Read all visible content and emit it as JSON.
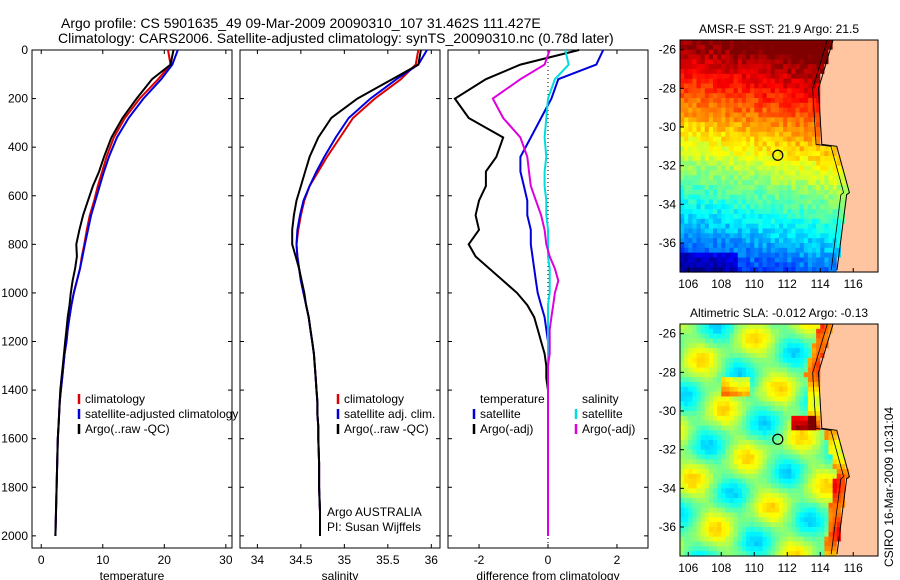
{
  "figure": {
    "title_line1": "Argo profile: CS 5901635_49 09-Mar-2009 20090310_107 31.462S 111.427E",
    "title_line2": "Climatology: CARS2006. Satellite-adjusted climatology: synTS_20090310.nc (0.78d later)",
    "side_label": "CSIRO 16-Mar-2009 10:31:04",
    "salinity_note_line1": "Argo AUSTRALIA",
    "salinity_note_line2": "PI: Susan Wijffels"
  },
  "colors": {
    "climatology": "#dd0000",
    "satellite": "#0000dd",
    "argo": "#000000",
    "salinity_satellite": "#00dddd",
    "salinity_argo": "#dd00dd",
    "land": "#ffc4a0"
  },
  "chart_data": [
    {
      "type": "line",
      "xlabel": "temperature",
      "xlim": [
        -1.5,
        31
      ],
      "xticks": [
        0,
        10,
        20,
        30
      ],
      "ylim": [
        2050,
        0
      ],
      "yticks": [
        0,
        200,
        400,
        600,
        800,
        1000,
        1200,
        1400,
        1600,
        1800,
        2000
      ],
      "legend": [
        "climatology",
        "satellite-adjusted climatology",
        "Argo(..raw -QC)"
      ],
      "legend_position": "lower-right",
      "series": [
        {
          "name": "climatology",
          "color": "#dd0000",
          "x": [
            20.6,
            21.0,
            19.0,
            16.0,
            13.6,
            11.8,
            10.6,
            9.9,
            9.2,
            8.6,
            7.9,
            7.4,
            7.0,
            6.6,
            6.3,
            5.8,
            5.3,
            4.9,
            4.6,
            4.3,
            4.1,
            3.8,
            3.6,
            3.4,
            3.2,
            3.0,
            2.9,
            2.8,
            2.7,
            2.6,
            2.5,
            2.4,
            2.3
          ],
          "y": [
            0,
            60,
            120,
            200,
            280,
            360,
            440,
            500,
            560,
            620,
            680,
            740,
            800,
            850,
            900,
            950,
            1000,
            1050,
            1100,
            1150,
            1200,
            1250,
            1300,
            1350,
            1400,
            1450,
            1500,
            1550,
            1600,
            1700,
            1800,
            1900,
            2000
          ]
        },
        {
          "name": "satellite-adjusted climatology",
          "color": "#0000dd",
          "x": [
            22.2,
            21.3,
            19.5,
            16.6,
            14.2,
            12.3,
            11.0,
            10.2,
            9.5,
            8.8,
            8.1,
            7.6,
            7.1,
            6.7,
            6.3,
            5.8,
            5.3,
            4.9,
            4.6,
            4.3,
            4.1,
            3.8,
            3.6,
            3.4,
            3.2,
            3.0,
            2.9,
            2.8,
            2.7,
            2.6,
            2.5,
            2.4,
            2.3
          ],
          "y": [
            0,
            60,
            120,
            200,
            280,
            360,
            440,
            500,
            560,
            620,
            680,
            740,
            800,
            850,
            900,
            950,
            1000,
            1050,
            1100,
            1150,
            1200,
            1250,
            1300,
            1350,
            1400,
            1450,
            1500,
            1550,
            1600,
            1700,
            1800,
            1900,
            2000
          ]
        },
        {
          "name": "Argo(..raw -QC)",
          "color": "#000000",
          "x": [
            21.5,
            21.0,
            18.0,
            15.5,
            13.2,
            11.4,
            10.2,
            9.4,
            8.4,
            7.6,
            6.8,
            6.2,
            5.7,
            5.8,
            5.5,
            5.1,
            4.8,
            4.6,
            4.3,
            4.1,
            3.9,
            3.7,
            3.5,
            3.3,
            3.1,
            3.0,
            2.9,
            2.8,
            2.7,
            2.6,
            2.5,
            2.4,
            2.3
          ],
          "y": [
            0,
            60,
            120,
            200,
            280,
            360,
            440,
            500,
            560,
            620,
            680,
            740,
            800,
            850,
            900,
            950,
            1000,
            1050,
            1100,
            1150,
            1200,
            1250,
            1300,
            1350,
            1400,
            1450,
            1500,
            1550,
            1600,
            1700,
            1800,
            1900,
            2000
          ]
        }
      ]
    },
    {
      "type": "line",
      "xlabel": "salinity",
      "xlim": [
        33.8,
        36.1
      ],
      "xticks": [
        34,
        34.5,
        35,
        35.5,
        36
      ],
      "xticklabels": [
        "34",
        "34.5",
        "35",
        "35.5",
        "36"
      ],
      "ylim": [
        2050,
        0
      ],
      "legend": [
        "climatology",
        "satellite adj. clim.",
        "Argo(..raw -QC)"
      ],
      "legend_position": "lower-right",
      "series": [
        {
          "name": "climatology",
          "color": "#dd0000",
          "x": [
            35.85,
            35.82,
            35.65,
            35.35,
            35.1,
            34.95,
            34.8,
            34.7,
            34.6,
            34.54,
            34.5,
            34.47,
            34.45,
            34.46,
            34.48,
            34.5,
            34.53,
            34.56,
            34.59,
            34.61,
            34.63,
            34.65,
            34.66,
            34.67,
            34.68,
            34.69,
            34.69,
            34.7,
            34.7,
            34.71,
            34.71,
            34.72,
            34.72
          ],
          "y": [
            0,
            60,
            120,
            200,
            280,
            360,
            440,
            500,
            560,
            620,
            680,
            740,
            800,
            850,
            900,
            950,
            1000,
            1050,
            1100,
            1150,
            1200,
            1250,
            1300,
            1350,
            1400,
            1450,
            1500,
            1550,
            1600,
            1700,
            1800,
            1900,
            2000
          ]
        },
        {
          "name": "satellite adj. clim.",
          "color": "#0000dd",
          "x": [
            35.95,
            35.85,
            35.6,
            35.3,
            35.05,
            34.9,
            34.77,
            34.68,
            34.6,
            34.53,
            34.49,
            34.46,
            34.45,
            34.46,
            34.48,
            34.5,
            34.53,
            34.56,
            34.59,
            34.61,
            34.63,
            34.65,
            34.66,
            34.67,
            34.68,
            34.69,
            34.69,
            34.7,
            34.7,
            34.71,
            34.71,
            34.72,
            34.72
          ],
          "y": [
            0,
            60,
            120,
            200,
            280,
            360,
            440,
            500,
            560,
            620,
            680,
            740,
            800,
            850,
            900,
            950,
            1000,
            1050,
            1100,
            1150,
            1200,
            1250,
            1300,
            1350,
            1400,
            1450,
            1500,
            1550,
            1600,
            1700,
            1800,
            1900,
            2000
          ]
        },
        {
          "name": "Argo(..raw -QC)",
          "color": "#000000",
          "x": [
            35.88,
            35.85,
            35.55,
            35.15,
            34.85,
            34.7,
            34.6,
            34.55,
            34.5,
            34.45,
            34.42,
            34.4,
            34.4,
            34.44,
            34.48,
            34.51,
            34.54,
            34.56,
            34.59,
            34.61,
            34.63,
            34.65,
            34.66,
            34.67,
            34.68,
            34.69,
            34.69,
            34.7,
            34.7,
            34.71,
            34.71,
            34.72,
            34.72
          ],
          "y": [
            0,
            60,
            120,
            200,
            280,
            360,
            440,
            500,
            560,
            620,
            680,
            740,
            800,
            850,
            900,
            950,
            1000,
            1050,
            1100,
            1150,
            1200,
            1250,
            1300,
            1350,
            1400,
            1450,
            1500,
            1550,
            1600,
            1700,
            1800,
            1900,
            2000
          ]
        }
      ]
    },
    {
      "type": "line",
      "xlabel": "difference from climatology",
      "xlim": [
        -2.9,
        2.9
      ],
      "xticks": [
        -2,
        0,
        2
      ],
      "ylim": [
        2050,
        0
      ],
      "zero_line": "dotted",
      "legend": [
        "temperature",
        "satellite",
        "Argo(-adj)",
        "salinity",
        "satellite",
        "Argo(-adj)"
      ],
      "legend_position": "lower",
      "series": [
        {
          "name": "temperature satellite",
          "color": "#0000dd",
          "x": [
            1.6,
            1.4,
            0.3,
            0.1,
            -0.2,
            -0.5,
            -0.8,
            -0.8,
            -0.7,
            -0.6,
            -0.6,
            -0.5,
            -0.5,
            -0.45,
            -0.4,
            -0.35,
            -0.3,
            -0.2,
            -0.1,
            -0.05,
            0,
            0,
            0,
            0,
            0,
            0,
            0,
            0,
            0,
            0,
            0,
            0,
            0
          ],
          "y": [
            0,
            60,
            120,
            200,
            280,
            360,
            440,
            500,
            560,
            620,
            680,
            740,
            800,
            850,
            900,
            950,
            1000,
            1050,
            1100,
            1150,
            1200,
            1250,
            1300,
            1350,
            1400,
            1450,
            1500,
            1550,
            1600,
            1700,
            1800,
            1900,
            2000
          ]
        },
        {
          "name": "temperature Argo(-adj)",
          "color": "#000000",
          "x": [
            0.9,
            -0.8,
            -1.8,
            -2.7,
            -2.3,
            -1.3,
            -1.5,
            -1.8,
            -1.8,
            -2.0,
            -2.1,
            -2.0,
            -2.3,
            -2.1,
            -1.7,
            -1.3,
            -0.9,
            -0.6,
            -0.4,
            -0.3,
            -0.2,
            -0.1,
            -0.05,
            -0.05,
            0,
            0,
            0,
            0,
            0,
            0,
            0,
            0,
            0
          ],
          "y": [
            0,
            60,
            120,
            200,
            280,
            360,
            440,
            500,
            560,
            620,
            680,
            740,
            800,
            850,
            900,
            950,
            1000,
            1050,
            1100,
            1150,
            1200,
            1250,
            1300,
            1350,
            1400,
            1450,
            1500,
            1550,
            1600,
            1700,
            1800,
            1900,
            2000
          ]
        },
        {
          "name": "salinity satellite",
          "color": "#00dddd",
          "x": [
            0.5,
            0.6,
            0.2,
            0.0,
            -0.05,
            -0.1,
            -0.05,
            -0.1,
            -0.1,
            -0.05,
            -0.05,
            0,
            0,
            0,
            0.05,
            0.05,
            0.05,
            0,
            0,
            0,
            0,
            0,
            0,
            0,
            0,
            0,
            0,
            0,
            0,
            0,
            0,
            0,
            0
          ],
          "y": [
            0,
            60,
            120,
            200,
            280,
            360,
            440,
            500,
            560,
            620,
            680,
            740,
            800,
            850,
            900,
            950,
            1000,
            1050,
            1100,
            1150,
            1200,
            1250,
            1300,
            1350,
            1400,
            1450,
            1500,
            1550,
            1600,
            1700,
            1800,
            1900,
            2000
          ]
        },
        {
          "name": "salinity Argo(-adj)",
          "color": "#dd00dd",
          "x": [
            0.05,
            -0.1,
            -0.8,
            -1.6,
            -1.3,
            -0.8,
            -0.6,
            -0.55,
            -0.5,
            -0.35,
            -0.2,
            -0.1,
            -0.05,
            0.05,
            0.2,
            0.3,
            0.2,
            0.15,
            0.1,
            0.05,
            0.05,
            0.05,
            0,
            0,
            0,
            0,
            0,
            0,
            0,
            0,
            0,
            0,
            0
          ],
          "y": [
            0,
            60,
            120,
            200,
            280,
            360,
            440,
            500,
            560,
            620,
            680,
            740,
            800,
            850,
            900,
            950,
            1000,
            1050,
            1100,
            1150,
            1200,
            1250,
            1300,
            1350,
            1400,
            1450,
            1500,
            1550,
            1600,
            1700,
            1800,
            1900,
            2000
          ]
        }
      ]
    },
    {
      "type": "heatmap",
      "title": "AMSR-E SST: 21.9 Argo: 21.5",
      "colormap": "jet",
      "xlim": [
        105.5,
        117.5
      ],
      "ylim": [
        -37.5,
        -25.5
      ],
      "xticks": [
        106,
        108,
        110,
        112,
        114,
        116
      ],
      "yticks": [
        -26,
        -28,
        -30,
        -32,
        -34,
        -36
      ],
      "marker": {
        "lon": 111.427,
        "lat": -31.462,
        "shape": "circle"
      }
    },
    {
      "type": "heatmap",
      "title": "Altimetric SLA: -0.012 Argo: -0.13",
      "colormap": "jet",
      "xlim": [
        105.5,
        117.5
      ],
      "ylim": [
        -37.5,
        -25.5
      ],
      "xticks": [
        106,
        108,
        110,
        112,
        114,
        116
      ],
      "yticks": [
        -26,
        -28,
        -30,
        -32,
        -34,
        -36
      ],
      "marker": {
        "lon": 111.427,
        "lat": -31.462,
        "shape": "circle"
      }
    }
  ]
}
